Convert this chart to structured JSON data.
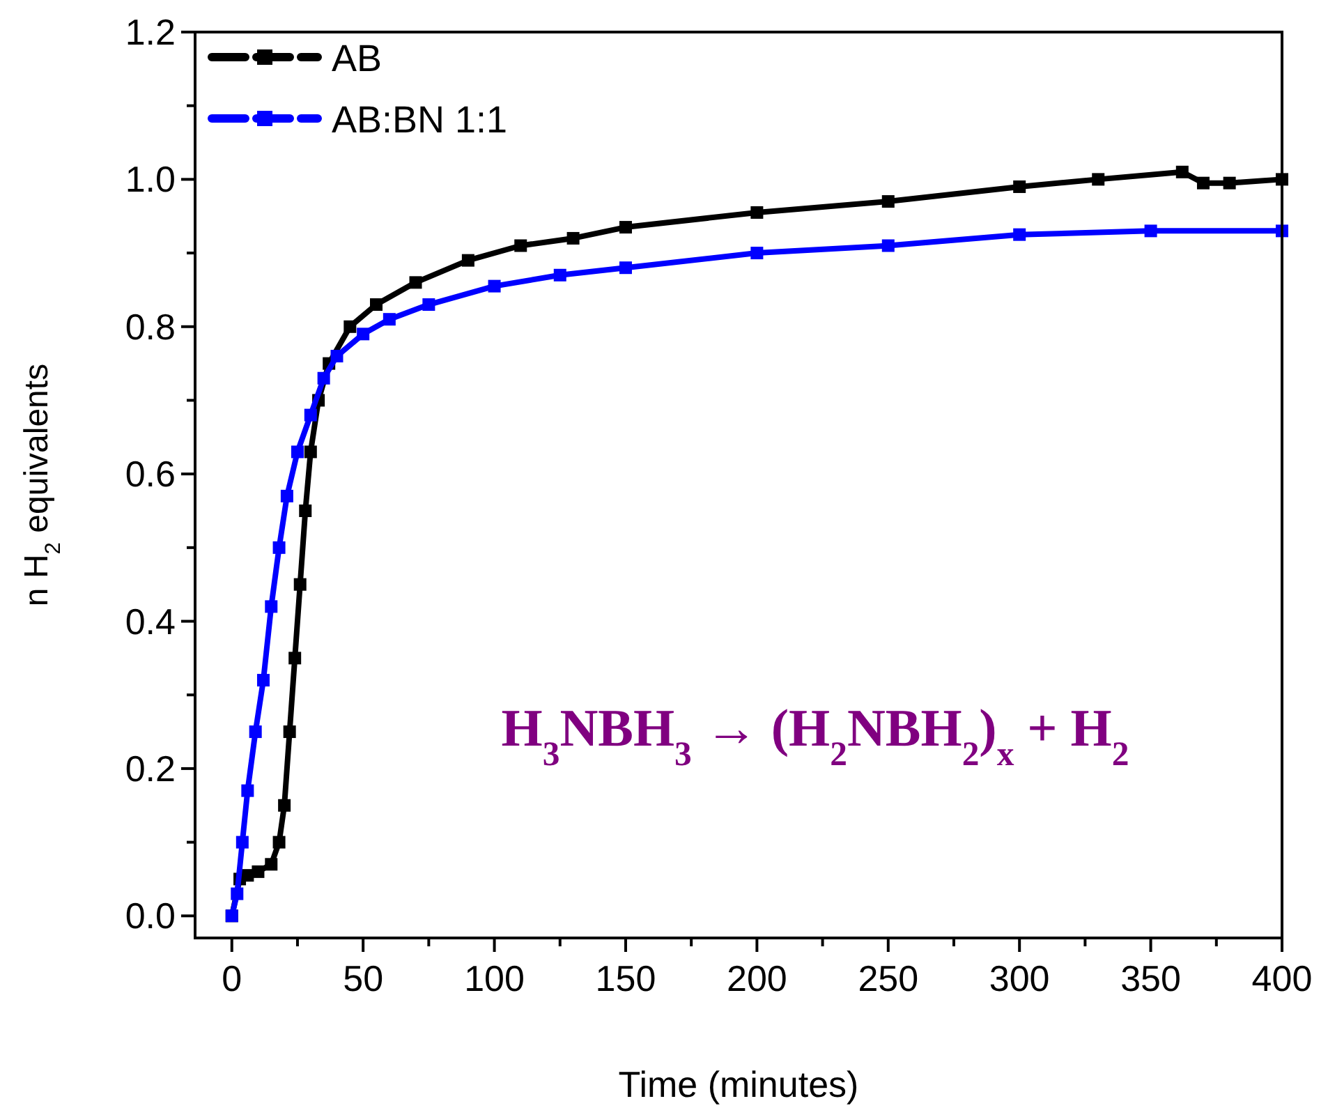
{
  "chart_data": {
    "type": "line",
    "xlabel": "Time (minutes)",
    "ylabel": "n H$_{2}$ equivalents",
    "xlim": [
      -14,
      400
    ],
    "ylim": [
      -0.03,
      1.2
    ],
    "xticks": [
      0,
      {
        "value": 25,
        "label": null
      },
      50,
      {
        "value": 75,
        "label": null
      },
      100,
      {
        "value": 125,
        "label": null
      },
      150,
      {
        "value": 175,
        "label": null
      },
      200,
      {
        "value": 225,
        "label": null
      },
      250,
      {
        "value": 275,
        "label": null
      },
      300,
      {
        "value": 325,
        "label": null
      },
      350,
      {
        "value": 375,
        "label": null
      },
      400
    ],
    "yticks": [
      {
        "value": 0,
        "label": "0.0"
      },
      {
        "value": 0.1,
        "label": null
      },
      {
        "value": 0.2,
        "label": "0.2"
      },
      {
        "value": 0.3,
        "label": null
      },
      {
        "value": 0.4,
        "label": "0.4"
      },
      {
        "value": 0.5,
        "label": null
      },
      {
        "value": 0.6,
        "label": "0.6"
      },
      {
        "value": 0.7,
        "label": null
      },
      {
        "value": 0.8,
        "label": "0.8"
      },
      {
        "value": 0.9,
        "label": null
      },
      {
        "value": 1.0,
        "label": "1.0"
      },
      {
        "value": 1.1,
        "label": null
      },
      {
        "value": 1.2,
        "label": "1.2"
      }
    ],
    "legend": "top left",
    "marker": "square",
    "grid": false,
    "annotations": [
      "H$_{3}$NBH$_{3}$ → (H$_{2}$NBH$_{2}$)$_{x}$ + H$_{2}$"
    ],
    "series": [
      {
        "name": "AB",
        "color": "#000000",
        "x": [
          0,
          3,
          6,
          10,
          15,
          18,
          20,
          22,
          24,
          26,
          28,
          30,
          33,
          37,
          45,
          55,
          70,
          90,
          110,
          130,
          150,
          200,
          250,
          300,
          330,
          362,
          370,
          380,
          400
        ],
        "values": [
          0,
          0.05,
          0.055,
          0.06,
          0.07,
          0.1,
          0.15,
          0.25,
          0.35,
          0.45,
          0.55,
          0.63,
          0.7,
          0.75,
          0.8,
          0.83,
          0.86,
          0.89,
          0.91,
          0.92,
          0.935,
          0.955,
          0.97,
          0.99,
          1.0,
          1.01,
          0.995,
          0.995,
          1.0
        ]
      },
      {
        "name": "AB:BN 1:1",
        "color": "#0000ff",
        "x": [
          0,
          2,
          4,
          6,
          9,
          12,
          15,
          18,
          21,
          25,
          30,
          35,
          40,
          50,
          60,
          75,
          100,
          125,
          150,
          200,
          250,
          300,
          350,
          400
        ],
        "values": [
          0,
          0.03,
          0.1,
          0.17,
          0.25,
          0.32,
          0.42,
          0.5,
          0.57,
          0.63,
          0.68,
          0.73,
          0.76,
          0.79,
          0.81,
          0.83,
          0.855,
          0.87,
          0.88,
          0.9,
          0.91,
          0.925,
          0.93,
          0.93
        ]
      }
    ]
  }
}
